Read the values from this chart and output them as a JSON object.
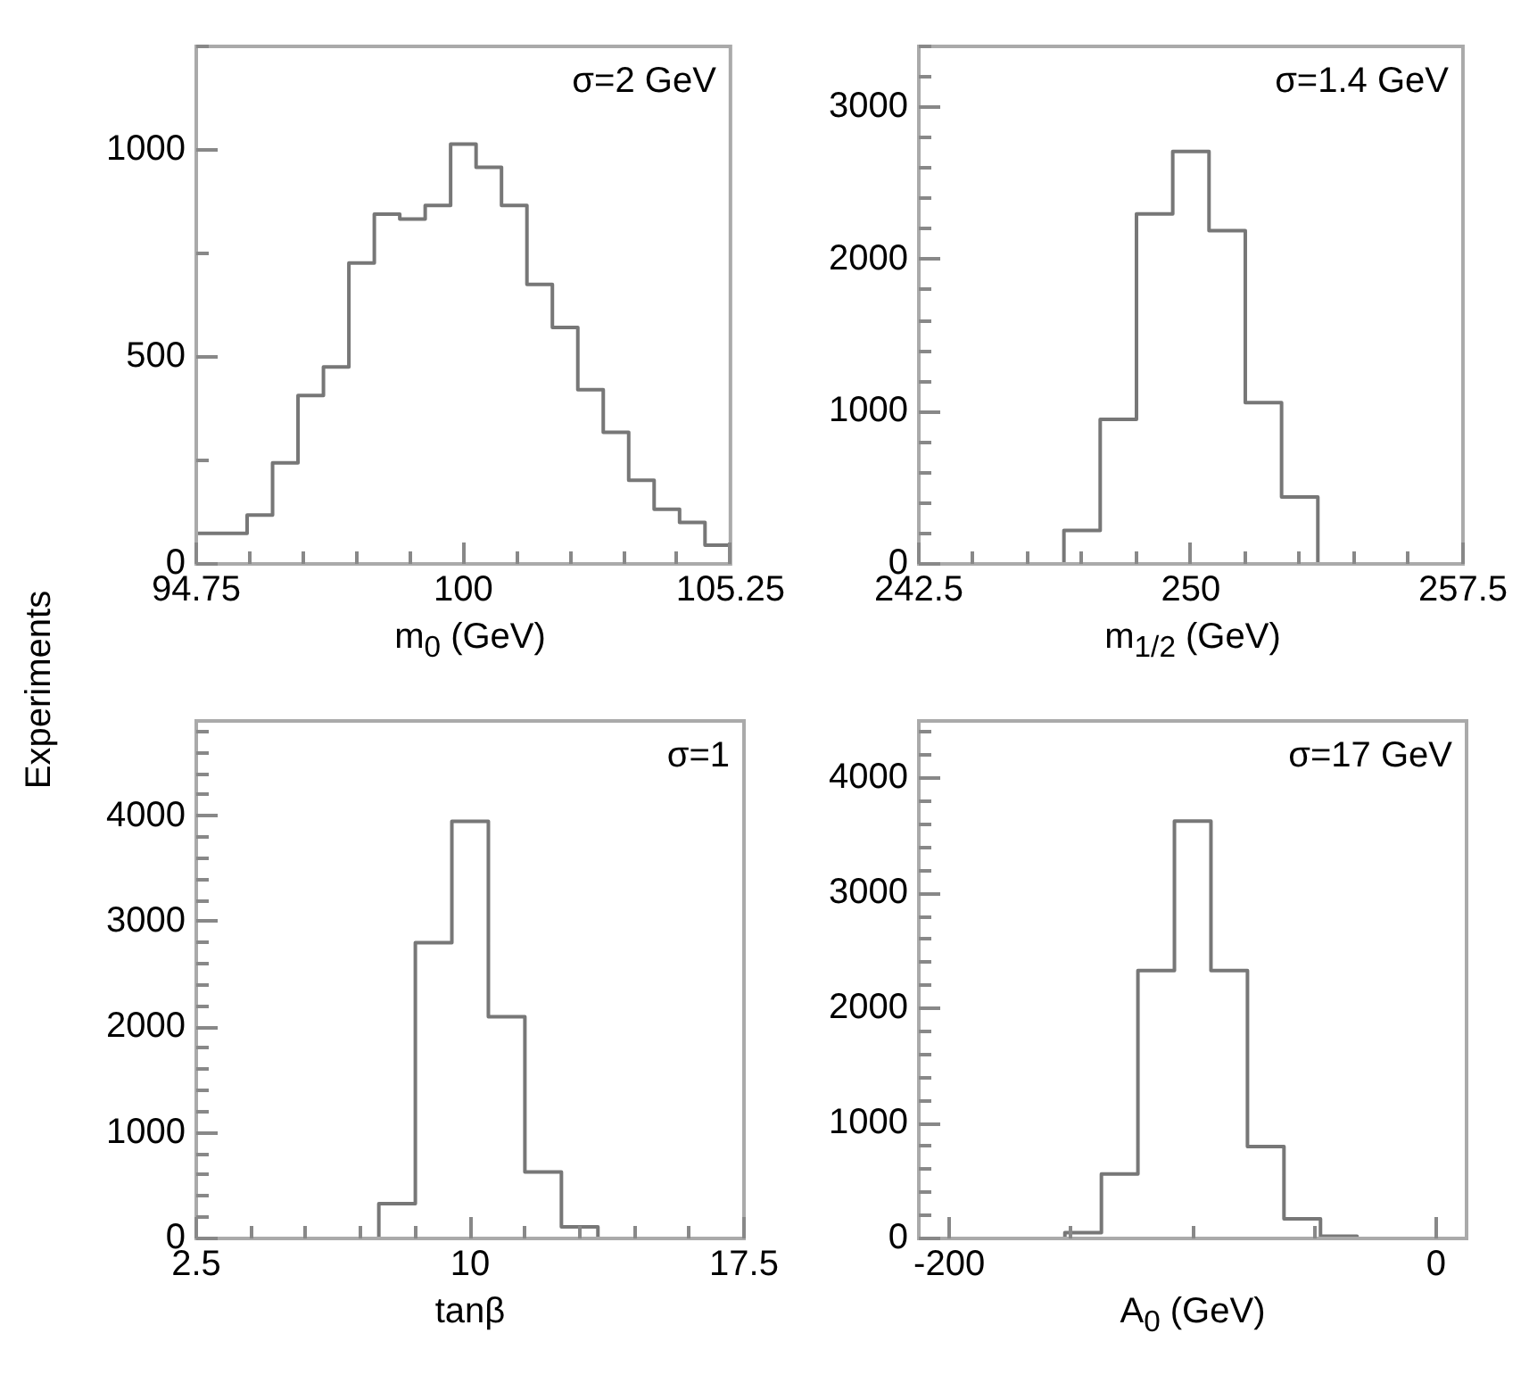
{
  "chart_data": [
    {
      "type": "histogram",
      "ylabel": "Experiments",
      "xlabel": "m$_{0}$ (GeV)",
      "annotations": [
        "σ=2 GeV"
      ],
      "color": "#777777",
      "bins": [
        94.75,
        95.25,
        95.75,
        96.25,
        96.75,
        97.25,
        97.75,
        98.25,
        98.75,
        99.25,
        99.75,
        100.25,
        100.75,
        101.25,
        101.75,
        102.25,
        102.75,
        103.25,
        103.75,
        104.25,
        104.75,
        105.25
      ],
      "values": [
        74,
        74,
        118,
        244,
        407,
        476,
        727,
        845,
        833,
        866,
        1014,
        958,
        866,
        675,
        571,
        421,
        318,
        202,
        132,
        100,
        45
      ],
      "xlim": [
        94.75,
        105.25
      ],
      "xticks": [
        94.75,
        {
          "value": 95.8,
          "label": null
        },
        {
          "value": 96.85,
          "label": null
        },
        {
          "value": 97.9,
          "label": null
        },
        {
          "value": 98.95,
          "label": null
        },
        100,
        {
          "value": 101.05,
          "label": null
        },
        {
          "value": 102.1,
          "label": null
        },
        {
          "value": 103.15,
          "label": null
        },
        {
          "value": 104.2,
          "label": null
        },
        105.25
      ],
      "ylim": [
        0,
        1250
      ],
      "yticks": [
        0,
        {
          "value": 250,
          "label": null
        },
        500,
        {
          "value": 750,
          "label": null
        },
        1000,
        {
          "value": 1250,
          "label": null
        }
      ]
    },
    {
      "type": "histogram",
      "xlabel": "m$_{1/2}$ (GeV)",
      "annotations": [
        "σ=1.4 GeV"
      ],
      "color": "#777777",
      "bins": [
        242.5,
        243.5,
        244.5,
        245.5,
        246.5,
        247.5,
        248.5,
        249.5,
        250.5,
        251.5,
        252.5,
        253.5,
        254.5,
        255.5,
        256.5,
        257.5
      ],
      "values": [
        0,
        0,
        0,
        0,
        220,
        950,
        2300,
        2710,
        2190,
        1060,
        440,
        0,
        0,
        0,
        0
      ],
      "xlim": [
        242.5,
        257.5
      ],
      "xticks": [
        242.5,
        {
          "value": 244,
          "label": null
        },
        {
          "value": 245.5,
          "label": null
        },
        {
          "value": 247,
          "label": null
        },
        {
          "value": 248.5,
          "label": null
        },
        250,
        {
          "value": 251.5,
          "label": null
        },
        {
          "value": 253,
          "label": null
        },
        {
          "value": 254.5,
          "label": null
        },
        {
          "value": 256,
          "label": null
        },
        257.5
      ],
      "ylim": [
        0,
        3400
      ],
      "yticks": [
        0,
        {
          "value": 200,
          "label": null
        },
        {
          "value": 400,
          "label": null
        },
        {
          "value": 600,
          "label": null
        },
        {
          "value": 800,
          "label": null
        },
        1000,
        {
          "value": 1200,
          "label": null
        },
        {
          "value": 1400,
          "label": null
        },
        {
          "value": 1600,
          "label": null
        },
        {
          "value": 1800,
          "label": null
        },
        2000,
        {
          "value": 2200,
          "label": null
        },
        {
          "value": 2400,
          "label": null
        },
        {
          "value": 2600,
          "label": null
        },
        {
          "value": 2800,
          "label": null
        },
        3000,
        {
          "value": 3200,
          "label": null
        },
        {
          "value": 3400,
          "label": null
        }
      ]
    },
    {
      "type": "histogram",
      "xlabel": "tanβ",
      "annotations": [
        "σ=1"
      ],
      "color": "#777777",
      "bins": [
        2.5,
        3.5,
        4.5,
        5.5,
        6.5,
        7.5,
        8.5,
        9.5,
        10.5,
        11.5,
        12.5,
        13.5,
        14.5,
        15.5,
        16.5,
        17.5
      ],
      "values": [
        0,
        0,
        0,
        0,
        0,
        330,
        2800,
        3950,
        2100,
        630,
        110,
        0,
        0,
        0,
        0
      ],
      "xlim": [
        2.5,
        17.5
      ],
      "xticks": [
        2.5,
        {
          "value": 4,
          "label": null
        },
        {
          "value": 5.5,
          "label": null
        },
        {
          "value": 7,
          "label": null
        },
        {
          "value": 8.5,
          "label": null
        },
        10,
        {
          "value": 11.5,
          "label": null
        },
        {
          "value": 13,
          "label": null
        },
        {
          "value": 14.5,
          "label": null
        },
        {
          "value": 16,
          "label": null
        },
        17.5
      ],
      "ylim": [
        0,
        4900
      ],
      "yticks": [
        0,
        {
          "value": 200,
          "label": null
        },
        {
          "value": 400,
          "label": null
        },
        {
          "value": 600,
          "label": null
        },
        {
          "value": 800,
          "label": null
        },
        1000,
        {
          "value": 1200,
          "label": null
        },
        {
          "value": 1400,
          "label": null
        },
        {
          "value": 1600,
          "label": null
        },
        {
          "value": 1800,
          "label": null
        },
        2000,
        {
          "value": 2200,
          "label": null
        },
        {
          "value": 2400,
          "label": null
        },
        {
          "value": 2600,
          "label": null
        },
        {
          "value": 2800,
          "label": null
        },
        3000,
        {
          "value": 3200,
          "label": null
        },
        {
          "value": 3400,
          "label": null
        },
        {
          "value": 3600,
          "label": null
        },
        {
          "value": 3800,
          "label": null
        },
        4000,
        {
          "value": 4200,
          "label": null
        },
        {
          "value": 4400,
          "label": null
        },
        {
          "value": 4600,
          "label": null
        },
        {
          "value": 4800,
          "label": null
        }
      ]
    },
    {
      "type": "histogram",
      "xlabel": "A$_{0}$ (GeV)",
      "annotations": [
        "σ=17 GeV"
      ],
      "color": "#777777",
      "bins": [
        -212.5,
        -197.5,
        -182.5,
        -167.5,
        -152.5,
        -137.5,
        -122.5,
        -107.5,
        -92.5,
        -77.5,
        -62.5,
        -47.5,
        -32.5,
        -17.5,
        -2.5,
        12.5
      ],
      "values": [
        0,
        0,
        0,
        0,
        50,
        560,
        2330,
        3630,
        2330,
        800,
        170,
        20,
        0,
        0,
        0
      ],
      "xlim": [
        -212.5,
        12.5
      ],
      "xticks": [
        -200,
        {
          "value": -150,
          "label": null
        },
        {
          "value": -100,
          "label": null
        },
        {
          "value": -50,
          "label": null
        },
        0
      ],
      "ylim": [
        0,
        4500
      ],
      "yticks": [
        0,
        {
          "value": 200,
          "label": null
        },
        {
          "value": 400,
          "label": null
        },
        {
          "value": 600,
          "label": null
        },
        {
          "value": 800,
          "label": null
        },
        1000,
        {
          "value": 1200,
          "label": null
        },
        {
          "value": 1400,
          "label": null
        },
        {
          "value": 1600,
          "label": null
        },
        {
          "value": 1800,
          "label": null
        },
        2000,
        {
          "value": 2200,
          "label": null
        },
        {
          "value": 2400,
          "label": null
        },
        {
          "value": 2600,
          "label": null
        },
        {
          "value": 2800,
          "label": null
        },
        3000,
        {
          "value": 3200,
          "label": null
        },
        {
          "value": 3400,
          "label": null
        },
        {
          "value": 3600,
          "label": null
        },
        {
          "value": 3800,
          "label": null
        },
        4000,
        {
          "value": 4200,
          "label": null
        },
        {
          "value": 4400,
          "label": null
        }
      ]
    }
  ]
}
